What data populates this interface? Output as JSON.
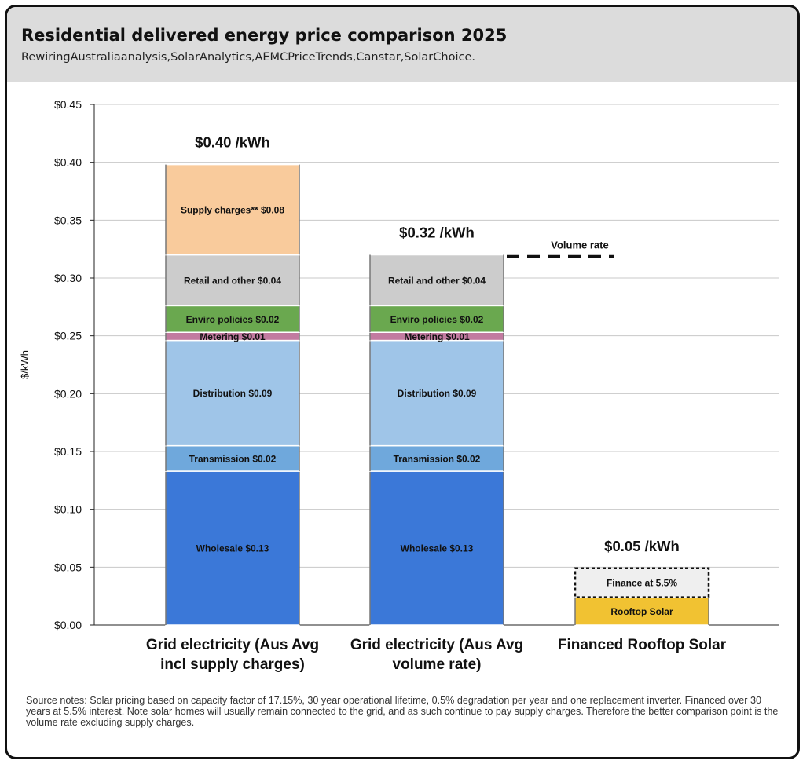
{
  "header": {
    "title": "Residential delivered energy price comparison 2025",
    "subtitle": "RewiringAustraliaanalysis,SolarAnalytics,AEMCPriceTrends,Canstar,SolarChoice."
  },
  "chart_data": {
    "type": "bar",
    "stacked": true,
    "ylabel": "$/kWh",
    "ylim": [
      0,
      0.45
    ],
    "y_ticks": [
      "$0.00",
      "$0.05",
      "$0.10",
      "$0.15",
      "$0.20",
      "$0.25",
      "$0.30",
      "$0.35",
      "$0.40",
      "$0.45"
    ],
    "grid": true,
    "categories": [
      [
        "Grid electricity (Aus Avg",
        "incl supply charges)"
      ],
      [
        "Grid electricity (Aus Avg",
        "volume rate)"
      ],
      [
        "Financed Rooftop Solar"
      ]
    ],
    "totals": [
      "$0.40 /kWh",
      "$0.32 /kWh",
      "$0.05 /kWh"
    ],
    "bars": [
      {
        "segments": [
          {
            "label": "Wholesale $0.13",
            "value": 0.133,
            "color": "#3b78d8"
          },
          {
            "label": "Transmission $0.02",
            "value": 0.022,
            "color": "#6fa8dc"
          },
          {
            "label": "Distribution $0.09",
            "value": 0.091,
            "color": "#9fc5e8"
          },
          {
            "label": "Metering $0.01",
            "value": 0.007,
            "color": "#c27ba0"
          },
          {
            "label": "Enviro policies $0.02",
            "value": 0.023,
            "color": "#6aa84f"
          },
          {
            "label": "Retail and other $0.04",
            "value": 0.044,
            "color": "#cccccc"
          },
          {
            "label": "Supply charges** $0.08",
            "value": 0.078,
            "color": "#f9cb9c"
          }
        ]
      },
      {
        "segments": [
          {
            "label": "Wholesale $0.13",
            "value": 0.133,
            "color": "#3b78d8"
          },
          {
            "label": "Transmission $0.02",
            "value": 0.022,
            "color": "#6fa8dc"
          },
          {
            "label": "Distribution $0.09",
            "value": 0.091,
            "color": "#9fc5e8"
          },
          {
            "label": "Metering $0.01",
            "value": 0.007,
            "color": "#c27ba0"
          },
          {
            "label": "Enviro policies $0.02",
            "value": 0.023,
            "color": "#6aa84f"
          },
          {
            "label": "Retail and other $0.04",
            "value": 0.044,
            "color": "#cccccc"
          }
        ]
      },
      {
        "segments": [
          {
            "label": "Rooftop Solar",
            "value": 0.024,
            "color": "#f1c232"
          },
          {
            "label": "Finance at 5.5%",
            "value": 0.025,
            "color": "#efefef",
            "dashed": true
          }
        ]
      }
    ],
    "reference_line": {
      "label": "Volume rate",
      "value": 0.32,
      "style": "dashed"
    }
  },
  "notes": "Source notes: Solar pricing based on capacity factor of 17.15%, 30 year operational lifetime, 0.5% degradation per year and one replacement inverter. Financed over 30 years at 5.5% interest. Note solar homes will usually remain connected to the grid, and as such continue to pay supply charges. Therefore the better comparison point is the volume rate excluding supply charges."
}
